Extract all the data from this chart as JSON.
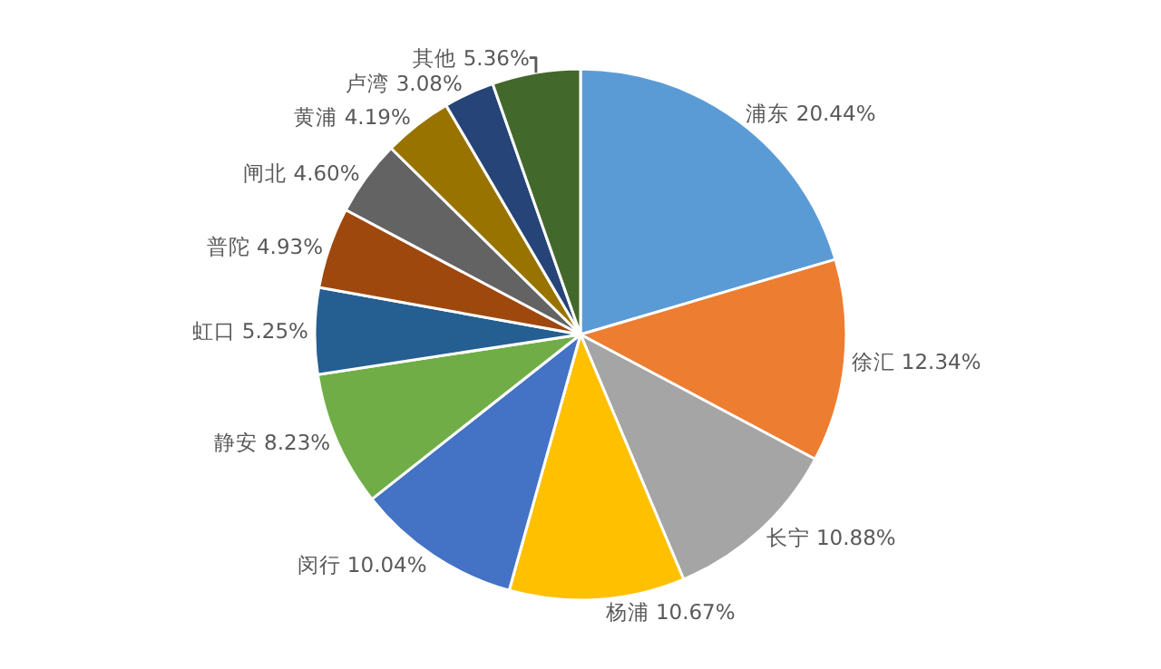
{
  "chart_data": {
    "type": "pie",
    "categories": [
      "浦东",
      "徐汇",
      "长宁",
      "杨浦",
      "闵行",
      "静安",
      "虹口",
      "普陀",
      "闸北",
      "黄浦",
      "卢湾",
      "其他"
    ],
    "values": [
      20.44,
      12.34,
      10.88,
      10.67,
      10.04,
      8.23,
      5.25,
      4.93,
      4.6,
      4.19,
      3.08,
      5.36
    ],
    "value_labels": [
      "20.44%",
      "12.34%",
      "10.88%",
      "10.67%",
      "10.04%",
      "8.23%",
      "5.25%",
      "4.93%",
      "4.60%",
      "4.19%",
      "3.08%",
      "5.36%"
    ],
    "colors": [
      "#5b9bd5",
      "#ed7d31",
      "#a5a5a5",
      "#ffc000",
      "#4472c4",
      "#70ad47",
      "#255e91",
      "#9e480e",
      "#636363",
      "#997300",
      "#264478",
      "#43682b"
    ],
    "legend": false
  }
}
